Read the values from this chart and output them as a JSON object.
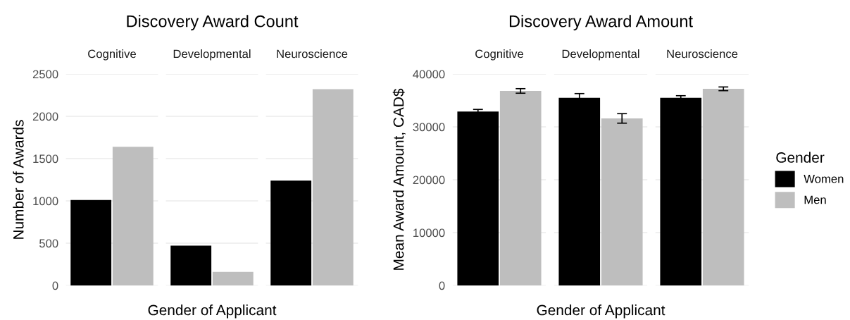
{
  "chart_data": [
    {
      "type": "bar",
      "title": "Discovery Award Count",
      "xlabel": "Gender of Applicant",
      "ylabel": "Number of Awards",
      "categories": [
        "Cognitive",
        "Developmental",
        "Neuroscience"
      ],
      "series": [
        {
          "color": "#000000",
          "values": [
            1010,
            470,
            1240
          ]
        },
        {
          "color": "#bebebe",
          "values": [
            1640,
            160,
            2320
          ]
        }
      ],
      "ylim": [
        0,
        2500
      ],
      "yticks": [
        0,
        500,
        1000,
        1500,
        2000,
        2500
      ],
      "grid": "y"
    },
    {
      "type": "bar",
      "title": "Discovery Award Amount",
      "xlabel": "Gender of Applicant",
      "ylabel": "Mean Award Amount, CAD$",
      "legend_title": "Gender",
      "legend": "right",
      "categories": [
        "Cognitive",
        "Developmental",
        "Neuroscience"
      ],
      "series": [
        {
          "name": "Women",
          "color": "#000000",
          "values": [
            32900,
            35500,
            35500
          ],
          "errors": [
            400,
            800,
            400
          ]
        },
        {
          "name": "Men",
          "color": "#bebebe",
          "values": [
            36800,
            31600,
            37200
          ],
          "errors": [
            430,
            900,
            350
          ]
        }
      ],
      "ylim": [
        0,
        40000
      ],
      "yticks": [
        0,
        10000,
        20000,
        30000,
        40000
      ],
      "grid": "y"
    }
  ]
}
